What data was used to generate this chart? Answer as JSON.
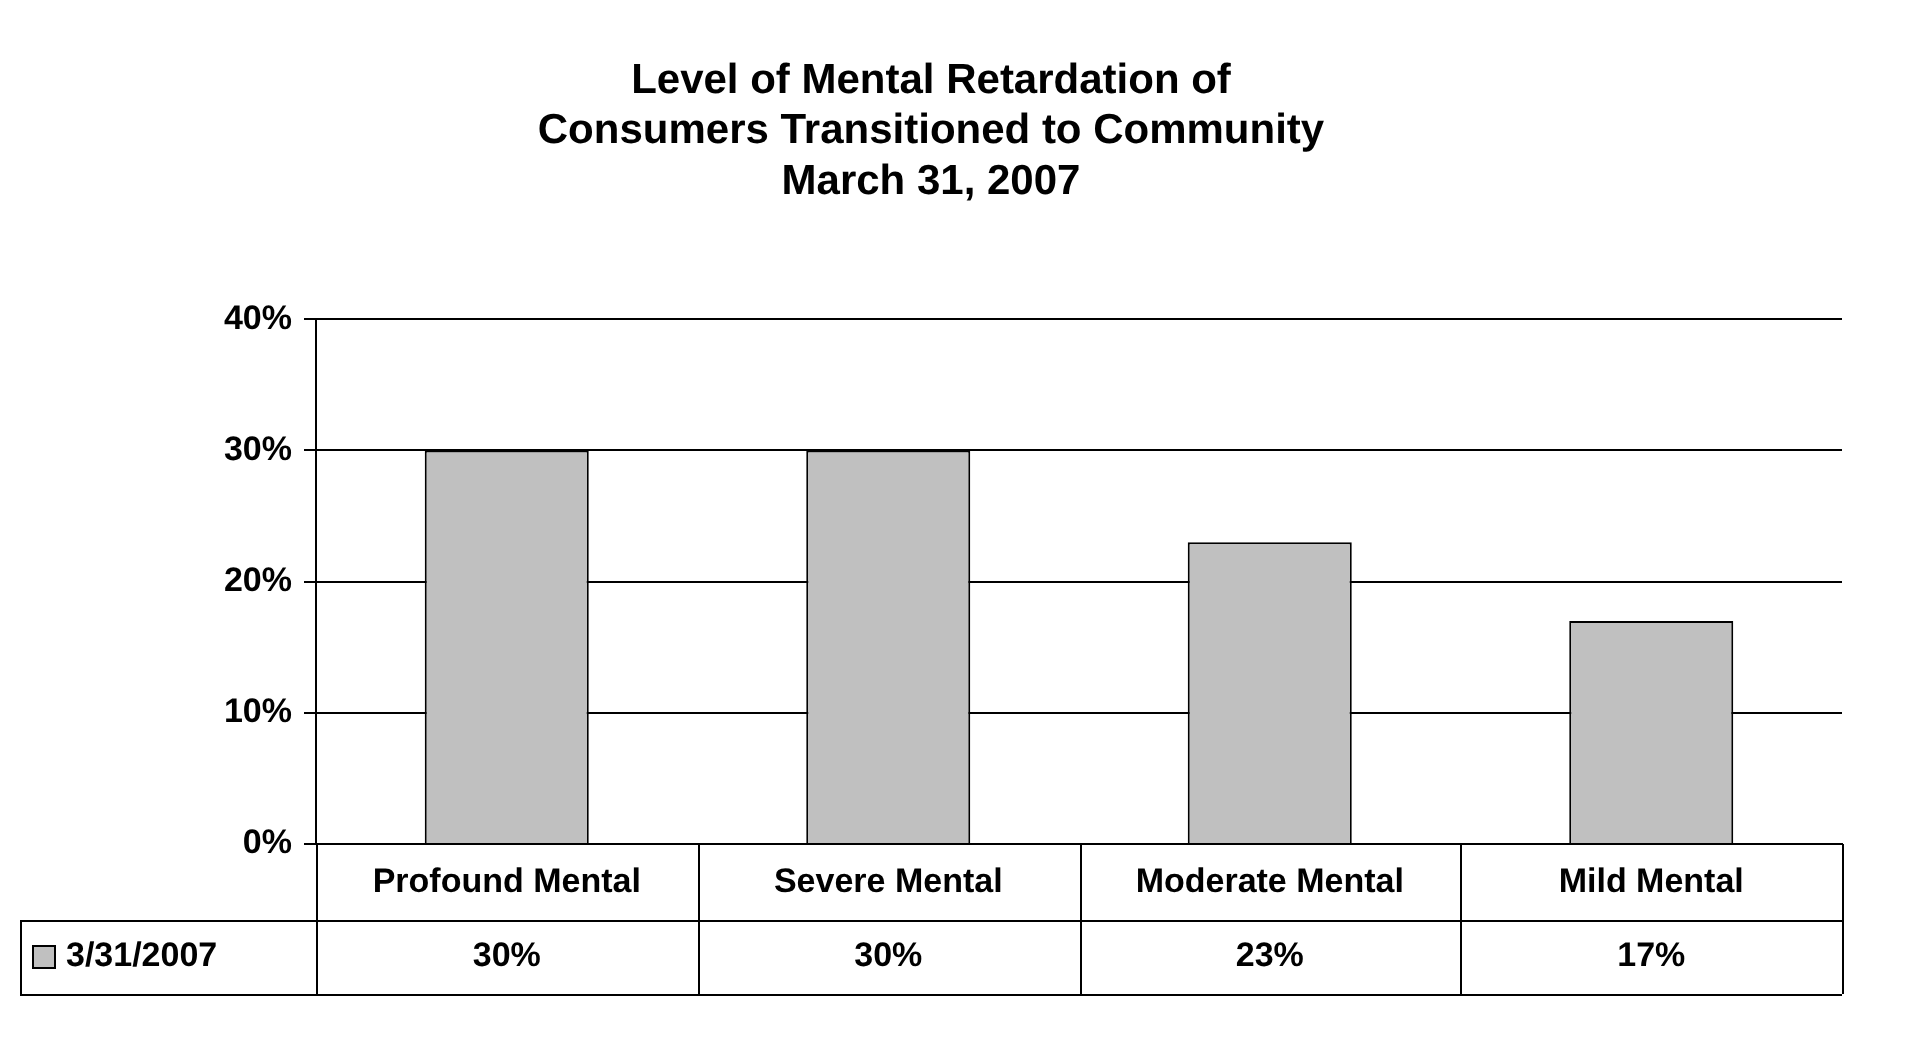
{
  "chart_data": {
    "type": "bar",
    "title": "Level of Mental Retardation of\nConsumers Transitioned to Community\nMarch 31, 2007",
    "categories": [
      "Profound Mental",
      "Severe Mental",
      "Moderate Mental",
      "Mild Mental"
    ],
    "series": [
      {
        "name": "3/31/2007",
        "color": "#c0c0c0",
        "values": [
          30,
          30,
          23,
          17
        ],
        "value_labels": [
          "30%",
          "30%",
          "23%",
          "17%"
        ]
      }
    ],
    "ylim": [
      0,
      40
    ],
    "yticks": [
      {
        "value": 0,
        "label": "0%"
      },
      {
        "value": 10,
        "label": "10%"
      },
      {
        "value": 20,
        "label": "20%"
      },
      {
        "value": 30,
        "label": "30%"
      },
      {
        "value": 40,
        "label": "40%"
      }
    ],
    "grid": "y",
    "legend": "bottom left"
  }
}
